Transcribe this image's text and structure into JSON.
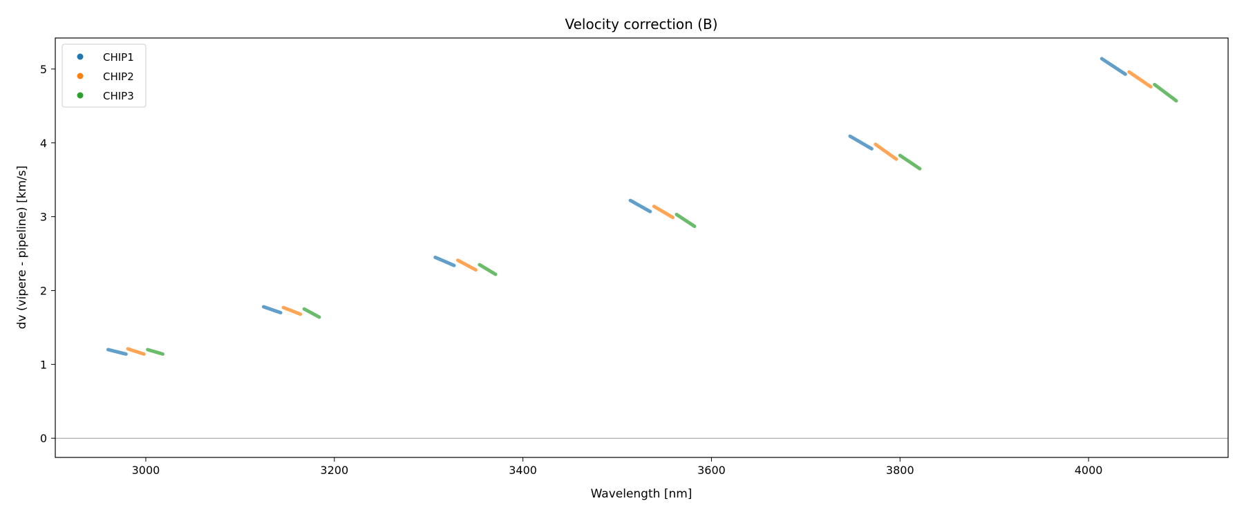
{
  "chart_data": {
    "type": "line",
    "title": "Velocity correction (B)",
    "xlabel": "Wavelength [nm]",
    "ylabel": "dv (vipere - pipeline) [km/s]",
    "xlim": [
      2904,
      4148
    ],
    "ylim": [
      -0.26,
      5.42
    ],
    "xticks": [
      3000,
      3200,
      3400,
      3600,
      3800,
      4000
    ],
    "yticks": [
      0,
      1,
      2,
      3,
      4,
      5
    ],
    "grid": false,
    "zero_line": true,
    "legend_position": "top-left",
    "series": [
      {
        "name": "CHIP1",
        "color": "#1f77b4",
        "segments": [
          [
            [
              2960,
              1.2
            ],
            [
              2979,
              1.14
            ]
          ],
          [
            [
              3125,
              1.78
            ],
            [
              3143,
              1.7
            ]
          ],
          [
            [
              3307,
              2.45
            ],
            [
              3327,
              2.34
            ]
          ],
          [
            [
              3514,
              3.22
            ],
            [
              3535,
              3.07
            ]
          ],
          [
            [
              3747,
              4.09
            ],
            [
              3770,
              3.92
            ]
          ],
          [
            [
              4014,
              5.14
            ],
            [
              4039,
              4.93
            ]
          ]
        ]
      },
      {
        "name": "CHIP2",
        "color": "#ff7f0e",
        "segments": [
          [
            [
              2981,
              1.21
            ],
            [
              2998,
              1.14
            ]
          ],
          [
            [
              3146,
              1.77
            ],
            [
              3164,
              1.68
            ]
          ],
          [
            [
              3331,
              2.41
            ],
            [
              3350,
              2.28
            ]
          ],
          [
            [
              3539,
              3.14
            ],
            [
              3559,
              2.99
            ]
          ],
          [
            [
              3774,
              3.98
            ],
            [
              3796,
              3.78
            ]
          ],
          [
            [
              4043,
              4.96
            ],
            [
              4066,
              4.76
            ]
          ]
        ]
      },
      {
        "name": "CHIP3",
        "color": "#2ca02c",
        "segments": [
          [
            [
              3002,
              1.2
            ],
            [
              3018,
              1.14
            ]
          ],
          [
            [
              3168,
              1.75
            ],
            [
              3184,
              1.64
            ]
          ],
          [
            [
              3354,
              2.35
            ],
            [
              3371,
              2.22
            ]
          ],
          [
            [
              3563,
              3.03
            ],
            [
              3582,
              2.87
            ]
          ],
          [
            [
              3800,
              3.83
            ],
            [
              3821,
              3.65
            ]
          ],
          [
            [
              4070,
              4.79
            ],
            [
              4093,
              4.57
            ]
          ]
        ]
      }
    ]
  }
}
